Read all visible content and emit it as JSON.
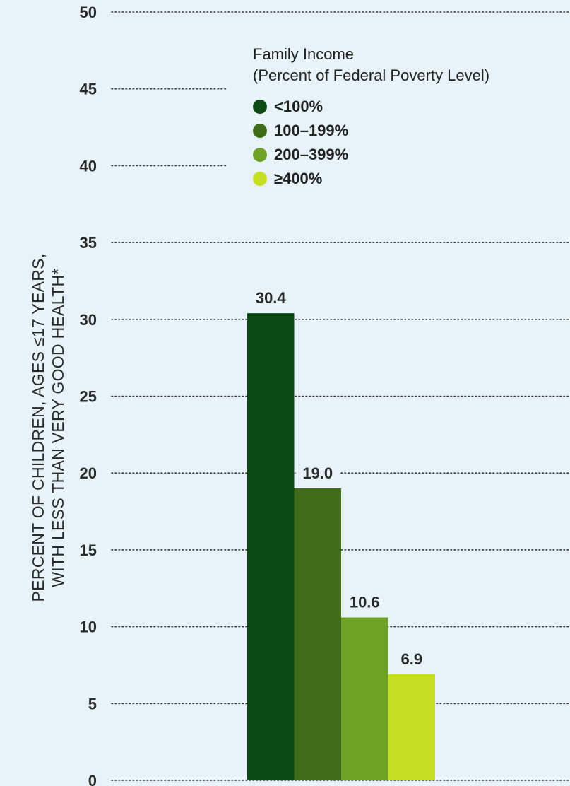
{
  "chart_data": {
    "type": "bar",
    "categories": [
      "<100%",
      "100–199%",
      "200–399%",
      "≥400%"
    ],
    "values": [
      30.4,
      19.0,
      10.6,
      6.9
    ],
    "value_labels": [
      "30.4",
      "19.0",
      "10.6",
      "6.9"
    ],
    "colors": [
      "#0b4a12",
      "#3f6b18",
      "#6ea227",
      "#c8de23"
    ],
    "ylabel_line1": "PERCENT OF CHILDREN, AGES ≤17 YEARS,",
    "ylabel_line2": "WITH LESS THAN VERY GOOD HEALTH*",
    "ylim": [
      0,
      50
    ],
    "yticks": [
      "0",
      "5",
      "10",
      "15",
      "20",
      "25",
      "30",
      "35",
      "40",
      "45",
      "50"
    ],
    "grid": "dotted horizontal",
    "legend_placement": "top-center",
    "legend_title_line1": "Family Income",
    "legend_title_line2": "(Percent of Federal Poverty Level)",
    "legend_entries": [
      "<100%",
      "100–199%",
      "200–399%",
      "≥400%"
    ]
  }
}
